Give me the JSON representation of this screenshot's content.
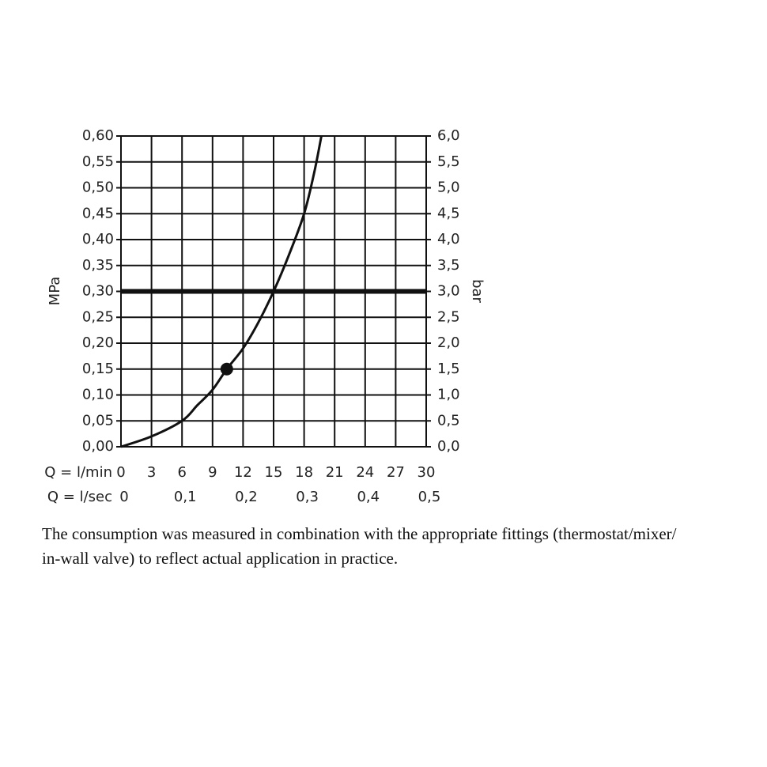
{
  "chart_data": {
    "type": "line",
    "x_label": "Q = l/min",
    "x2_label": "Q = l/sec",
    "y_label": "MPa",
    "y2_label": "bar",
    "x": [
      0,
      3,
      6,
      7.5,
      9,
      10.4,
      12,
      13.5,
      15,
      16.5,
      18,
      19,
      19.7
    ],
    "values": [
      0,
      0.02,
      0.05,
      0.08,
      0.11,
      0.15,
      0.19,
      0.24,
      0.3,
      0.37,
      0.45,
      0.53,
      0.6
    ],
    "color": "#111",
    "marker": {
      "x": 10.4,
      "y": 0.15
    },
    "reference_y": 0.3,
    "reference_x": 15,
    "xlim": [
      0,
      30
    ],
    "xticks": [
      0,
      3,
      6,
      9,
      12,
      15,
      18,
      21,
      24,
      27,
      30
    ],
    "x2lim": [
      0,
      0.5
    ],
    "x2ticks": [
      0,
      {
        "value": 0.1,
        "label": "0,1"
      },
      {
        "value": 0.2,
        "label": "0,2"
      },
      {
        "value": 0.3,
        "label": "0,3"
      },
      {
        "value": 0.4,
        "label": "0,4"
      },
      {
        "value": 0.5,
        "label": "0,5"
      }
    ],
    "ylim": [
      0,
      0.6
    ],
    "yticks": [
      {
        "value": 0,
        "label": "0,00"
      },
      {
        "value": 0.05,
        "label": "0,05"
      },
      {
        "value": 0.1,
        "label": "0,10"
      },
      {
        "value": 0.15,
        "label": "0,15"
      },
      {
        "value": 0.2,
        "label": "0,20"
      },
      {
        "value": 0.25,
        "label": "0,25"
      },
      {
        "value": 0.3,
        "label": "0,30"
      },
      {
        "value": 0.35,
        "label": "0,35"
      },
      {
        "value": 0.4,
        "label": "0,40"
      },
      {
        "value": 0.45,
        "label": "0,45"
      },
      {
        "value": 0.5,
        "label": "0,50"
      },
      {
        "value": 0.55,
        "label": "0,55"
      },
      {
        "value": 0.6,
        "label": "0,60"
      }
    ],
    "y2lim": [
      0,
      6
    ],
    "y2ticks": [
      {
        "value": 0,
        "label": "0,0"
      },
      {
        "value": 0.5,
        "label": "0,5"
      },
      {
        "value": 1,
        "label": "1,0"
      },
      {
        "value": 1.5,
        "label": "1,5"
      },
      {
        "value": 2,
        "label": "2,0"
      },
      {
        "value": 2.5,
        "label": "2,5"
      },
      {
        "value": 3,
        "label": "3,0"
      },
      {
        "value": 3.5,
        "label": "3,5"
      },
      {
        "value": 4,
        "label": "4,0"
      },
      {
        "value": 4.5,
        "label": "4,5"
      },
      {
        "value": 5,
        "label": "5,0"
      },
      {
        "value": 5.5,
        "label": "5,5"
      },
      {
        "value": 6,
        "label": "6,0"
      }
    ],
    "grid": true,
    "caption": [
      "The consumption was measured in combination with the appropriate fittings (thermostat/mixer/",
      "in-wall valve) to reflect actual application in practice."
    ]
  }
}
